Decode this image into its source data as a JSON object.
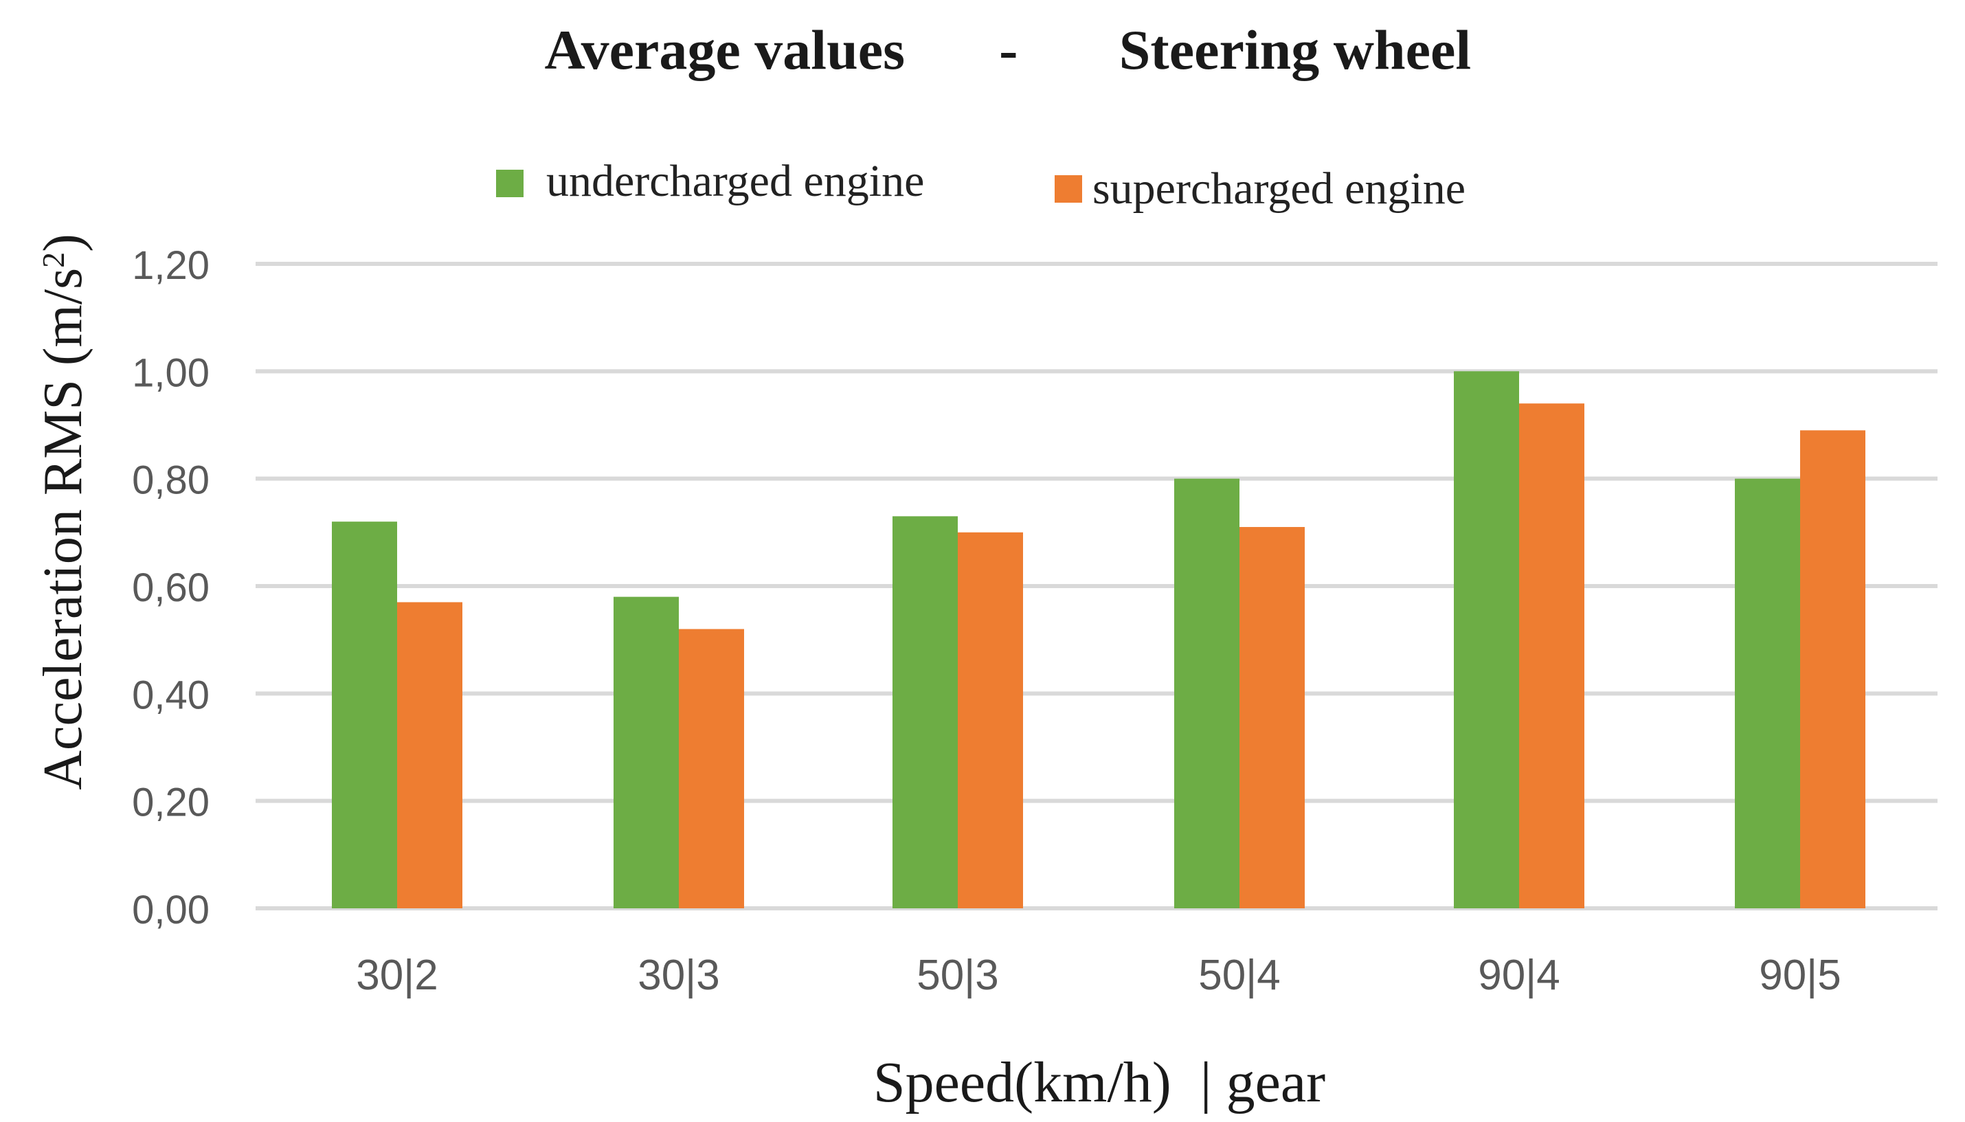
{
  "chart_data": {
    "type": "bar",
    "title_part1": "Average values",
    "title_separator": "-",
    "title_part2": "Steering wheel",
    "xlabel": "Speed(km/h)  | gear",
    "ylabel_main": "Acceleration RMS (m/s",
    "ylabel_sup": "2",
    "ylabel_close": ")",
    "categories": [
      "30|2",
      "30|3",
      "50|3",
      "50|4",
      "90|4",
      "90|5"
    ],
    "series": [
      {
        "name": "undercharged engine",
        "color": "#6DAD45",
        "values": [
          0.72,
          0.58,
          0.73,
          0.8,
          1.0,
          0.8
        ]
      },
      {
        "name": "supercharged engine",
        "color": "#EE7D31",
        "values": [
          0.57,
          0.52,
          0.7,
          0.71,
          0.94,
          0.89
        ]
      }
    ],
    "yticks": [
      "0,00",
      "0,20",
      "0,40",
      "0,60",
      "0,80",
      "1,00",
      "1,20"
    ],
    "ylim": [
      0,
      1.2
    ],
    "grid": true,
    "grid_color": "#D9D9D9",
    "legend_position": "top-center"
  }
}
